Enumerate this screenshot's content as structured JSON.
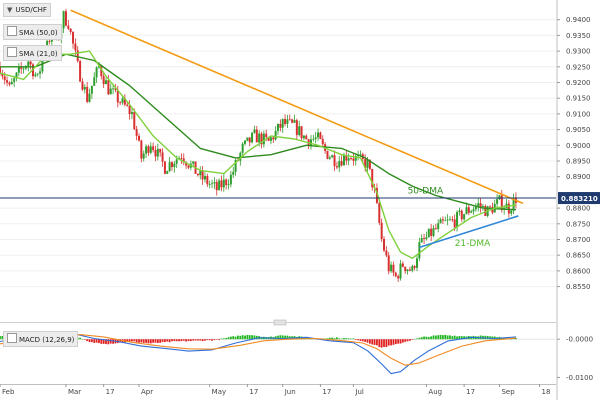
{
  "chart_data": {
    "type": "candlestick",
    "title": "USD/CHF",
    "indicators": [
      {
        "name": "SMA (50,0)",
        "color": "#2e8b1e"
      },
      {
        "name": "SMA (21,0)",
        "color": "#7fd13b"
      }
    ],
    "macd_label": "MACD (12,26,9)",
    "price_axis": {
      "min": 0.845,
      "max": 0.945,
      "ticks": [
        "0.9400",
        "0.9350",
        "0.9300",
        "0.9250",
        "0.9200",
        "0.9150",
        "0.9100",
        "0.9050",
        "0.9000",
        "0.8950",
        "0.8900",
        "0.8800",
        "0.8750",
        "0.8700",
        "0.8650",
        "0.8600",
        "0.8550"
      ]
    },
    "current_price": {
      "label": "0.883210",
      "value": 0.8832
    },
    "macd_axis": {
      "ticks": [
        "-0.0000",
        "-0.0100"
      ]
    },
    "x_axis": {
      "labels": [
        {
          "text": "Feb",
          "d": 0
        },
        {
          "text": "Mar",
          "d": 28
        },
        {
          "text": "17",
          "d": 44
        },
        {
          "text": "Apr",
          "d": 59
        },
        {
          "text": "May",
          "d": 89
        },
        {
          "text": "17",
          "d": 105
        },
        {
          "text": "Jun",
          "d": 120
        },
        {
          "text": "17",
          "d": 136
        },
        {
          "text": "Jul",
          "d": 150
        },
        {
          "text": "Aug",
          "d": 181
        },
        {
          "text": "17",
          "d": 197
        },
        {
          "text": "Sep",
          "d": 212
        },
        {
          "text": "18",
          "d": 229
        }
      ]
    },
    "annotations": [
      {
        "text": "50-DMA",
        "d": 173,
        "price": 0.8846,
        "color": "#2e8b1e"
      },
      {
        "text": "21-DMA",
        "d": 193,
        "price": 0.8679,
        "color": "#55b82e"
      }
    ],
    "trendlines": [
      {
        "name": "descending-resistance",
        "color": "#f39c12",
        "points": [
          [
            30,
            0.943
          ],
          [
            222,
            0.8815
          ]
        ]
      },
      {
        "name": "ascending-support",
        "color": "#2f87d8",
        "points": [
          [
            178,
            0.8675
          ],
          [
            220,
            0.8775
          ]
        ]
      }
    ],
    "price_path": [
      [
        0,
        0.925
      ],
      [
        4,
        0.918
      ],
      [
        8,
        0.923
      ],
      [
        12,
        0.927
      ],
      [
        16,
        0.921
      ],
      [
        20,
        0.934
      ],
      [
        25,
        0.935
      ],
      [
        27,
        0.941
      ],
      [
        29,
        0.939
      ],
      [
        33,
        0.925
      ],
      [
        37,
        0.915
      ],
      [
        42,
        0.925
      ],
      [
        46,
        0.918
      ],
      [
        51,
        0.914
      ],
      [
        56,
        0.91
      ],
      [
        60,
        0.896
      ],
      [
        64,
        0.901
      ],
      [
        70,
        0.893
      ],
      [
        77,
        0.897
      ],
      [
        85,
        0.89
      ],
      [
        92,
        0.886
      ],
      [
        98,
        0.89
      ],
      [
        103,
        0.899
      ],
      [
        108,
        0.903
      ],
      [
        114,
        0.901
      ],
      [
        120,
        0.907
      ],
      [
        125,
        0.906
      ],
      [
        130,
        0.902
      ],
      [
        135,
        0.902
      ],
      [
        138,
        0.898
      ],
      [
        143,
        0.895
      ],
      [
        148,
        0.897
      ],
      [
        153,
        0.895
      ],
      [
        156,
        0.894
      ],
      [
        159,
        0.885
      ],
      [
        162,
        0.87
      ],
      [
        165,
        0.861
      ],
      [
        168,
        0.858
      ],
      [
        171,
        0.862
      ],
      [
        175,
        0.86
      ],
      [
        178,
        0.868
      ],
      [
        183,
        0.872
      ],
      [
        188,
        0.875
      ],
      [
        193,
        0.876
      ],
      [
        198,
        0.879
      ],
      [
        203,
        0.881
      ],
      [
        207,
        0.879
      ],
      [
        212,
        0.882
      ],
      [
        216,
        0.88
      ],
      [
        219,
        0.8832
      ]
    ],
    "sma21_path": [
      [
        0,
        0.923
      ],
      [
        10,
        0.921
      ],
      [
        20,
        0.929
      ],
      [
        30,
        0.929
      ],
      [
        38,
        0.93
      ],
      [
        45,
        0.922
      ],
      [
        55,
        0.913
      ],
      [
        65,
        0.903
      ],
      [
        75,
        0.896
      ],
      [
        85,
        0.892
      ],
      [
        95,
        0.891
      ],
      [
        105,
        0.898
      ],
      [
        115,
        0.903
      ],
      [
        125,
        0.902
      ],
      [
        135,
        0.9
      ],
      [
        145,
        0.897
      ],
      [
        153,
        0.896
      ],
      [
        160,
        0.885
      ],
      [
        165,
        0.873
      ],
      [
        170,
        0.866
      ],
      [
        175,
        0.864
      ],
      [
        182,
        0.868
      ],
      [
        190,
        0.872
      ],
      [
        200,
        0.877
      ],
      [
        210,
        0.88
      ],
      [
        219,
        0.881
      ]
    ],
    "sma50_path": [
      [
        0,
        0.925
      ],
      [
        15,
        0.925
      ],
      [
        28,
        0.929
      ],
      [
        40,
        0.927
      ],
      [
        55,
        0.919
      ],
      [
        70,
        0.909
      ],
      [
        85,
        0.899
      ],
      [
        100,
        0.896
      ],
      [
        115,
        0.897
      ],
      [
        130,
        0.9
      ],
      [
        145,
        0.899
      ],
      [
        155,
        0.896
      ],
      [
        165,
        0.891
      ],
      [
        175,
        0.887
      ],
      [
        185,
        0.884
      ],
      [
        195,
        0.882
      ],
      [
        205,
        0.88
      ],
      [
        219,
        0.8795
      ]
    ],
    "macd_hist_path": [
      [
        0,
        0.0008
      ],
      [
        10,
        0.0007
      ],
      [
        20,
        0.0006
      ],
      [
        26,
        0.0015
      ],
      [
        32,
        0.0008
      ],
      [
        38,
        -0.0008
      ],
      [
        46,
        -0.0012
      ],
      [
        56,
        -0.0006
      ],
      [
        64,
        -0.0011
      ],
      [
        74,
        -0.0006
      ],
      [
        84,
        -0.0004
      ],
      [
        92,
        -0.0002
      ],
      [
        100,
        0.0008
      ],
      [
        106,
        0.0012
      ],
      [
        114,
        0.0005
      ],
      [
        120,
        0.0011
      ],
      [
        126,
        0.0007
      ],
      [
        134,
        0.0002
      ],
      [
        142,
        0.0004
      ],
      [
        150,
        0.0001
      ],
      [
        156,
        -0.0008
      ],
      [
        162,
        -0.0022
      ],
      [
        168,
        -0.0014
      ],
      [
        174,
        -0.0003
      ],
      [
        180,
        0.0006
      ],
      [
        188,
        0.0011
      ],
      [
        196,
        0.0008
      ],
      [
        204,
        0.0009
      ],
      [
        212,
        0.0005
      ],
      [
        219,
        0.0003
      ]
    ],
    "macd_line_path": [
      [
        0,
        -0.0006
      ],
      [
        10,
        0.0004
      ],
      [
        20,
        0.0018
      ],
      [
        30,
        0.0016
      ],
      [
        40,
        0.0002
      ],
      [
        50,
        -0.0006
      ],
      [
        60,
        -0.0018
      ],
      [
        70,
        -0.0024
      ],
      [
        80,
        -0.0031
      ],
      [
        90,
        -0.0028
      ],
      [
        100,
        -0.001
      ],
      [
        110,
        0.0004
      ],
      [
        120,
        0.0002
      ],
      [
        130,
        0.0005
      ],
      [
        140,
        -0.0004
      ],
      [
        150,
        -0.0009
      ],
      [
        156,
        -0.003
      ],
      [
        162,
        -0.0065
      ],
      [
        166,
        -0.009
      ],
      [
        170,
        -0.0085
      ],
      [
        176,
        -0.0055
      ],
      [
        182,
        -0.003
      ],
      [
        190,
        -0.0005
      ],
      [
        200,
        0.0005
      ],
      [
        210,
        0.0002
      ],
      [
        219,
        0.0006
      ]
    ],
    "macd_signal_path": [
      [
        0,
        -0.0012
      ],
      [
        12,
        -0.0004
      ],
      [
        24,
        0.0009
      ],
      [
        34,
        0.0012
      ],
      [
        44,
        0.0006
      ],
      [
        56,
        -0.0008
      ],
      [
        68,
        -0.0018
      ],
      [
        80,
        -0.0025
      ],
      [
        90,
        -0.0026
      ],
      [
        102,
        -0.0016
      ],
      [
        112,
        -0.0004
      ],
      [
        122,
        0.0
      ],
      [
        134,
        0.0002
      ],
      [
        146,
        -0.0004
      ],
      [
        154,
        -0.001
      ],
      [
        160,
        -0.0025
      ],
      [
        166,
        -0.005
      ],
      [
        172,
        -0.0068
      ],
      [
        178,
        -0.0062
      ],
      [
        186,
        -0.0042
      ],
      [
        196,
        -0.0018
      ],
      [
        206,
        -0.0004
      ],
      [
        219,
        0.0003
      ]
    ]
  }
}
